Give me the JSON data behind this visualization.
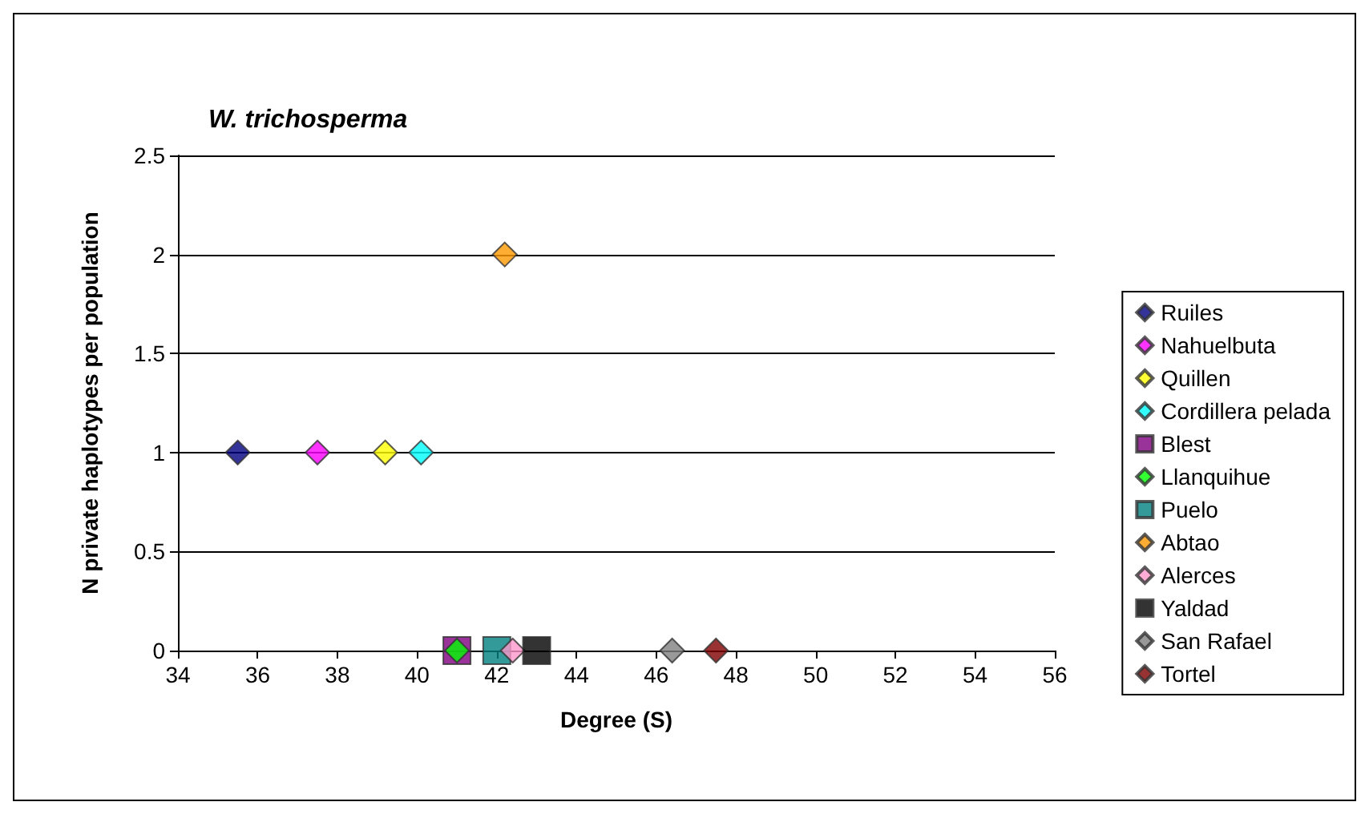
{
  "chart_data": {
    "type": "scatter",
    "title": "W. trichosperma",
    "xlabel": "Degree (S)",
    "ylabel": "N private haplotypes per population",
    "xlim": [
      34,
      56
    ],
    "xticks": [
      34,
      36,
      38,
      40,
      42,
      44,
      46,
      48,
      50,
      52,
      54,
      56
    ],
    "ylim": [
      0,
      2.5
    ],
    "yticks": [
      0,
      0.5,
      1,
      1.5,
      2,
      2.5
    ],
    "grid": "y",
    "legend": "right",
    "marker": "diamond",
    "series": [
      {
        "name": "Ruiles",
        "color": "#000080",
        "x": [
          35.5
        ],
        "values": [
          1
        ]
      },
      {
        "name": "Nahuelbuta",
        "color": "#ff00ff",
        "x": [
          37.5
        ],
        "values": [
          1
        ]
      },
      {
        "name": "Quillen",
        "color": "#ffff00",
        "x": [
          39.2
        ],
        "values": [
          1
        ]
      },
      {
        "name": "Cordillera pelada",
        "color": "#00ffff",
        "x": [
          40.1
        ],
        "values": [
          1
        ]
      },
      {
        "name": "Blest",
        "color": "#800080",
        "marker": "square",
        "x": [
          41.0
        ],
        "values": [
          0
        ]
      },
      {
        "name": "Llanquihue",
        "color": "#00ff00",
        "x": [
          41.0
        ],
        "values": [
          0
        ]
      },
      {
        "name": "Puelo",
        "color": "#008080",
        "marker": "square",
        "x": [
          42.0
        ],
        "values": [
          0
        ]
      },
      {
        "name": "Abtao",
        "color": "#ff9900",
        "x": [
          42.2
        ],
        "values": [
          2
        ]
      },
      {
        "name": "Alerces",
        "color": "#ff99cc",
        "x": [
          42.4
        ],
        "values": [
          0
        ]
      },
      {
        "name": "Yaldad",
        "color": "#000000",
        "marker": "square",
        "x": [
          43.0
        ],
        "values": [
          0
        ]
      },
      {
        "name": "San Rafael",
        "color": "#808080",
        "x": [
          46.4
        ],
        "values": [
          0
        ]
      },
      {
        "name": "Tortel",
        "color": "#800000",
        "x": [
          47.5
        ],
        "values": [
          0
        ]
      }
    ]
  }
}
